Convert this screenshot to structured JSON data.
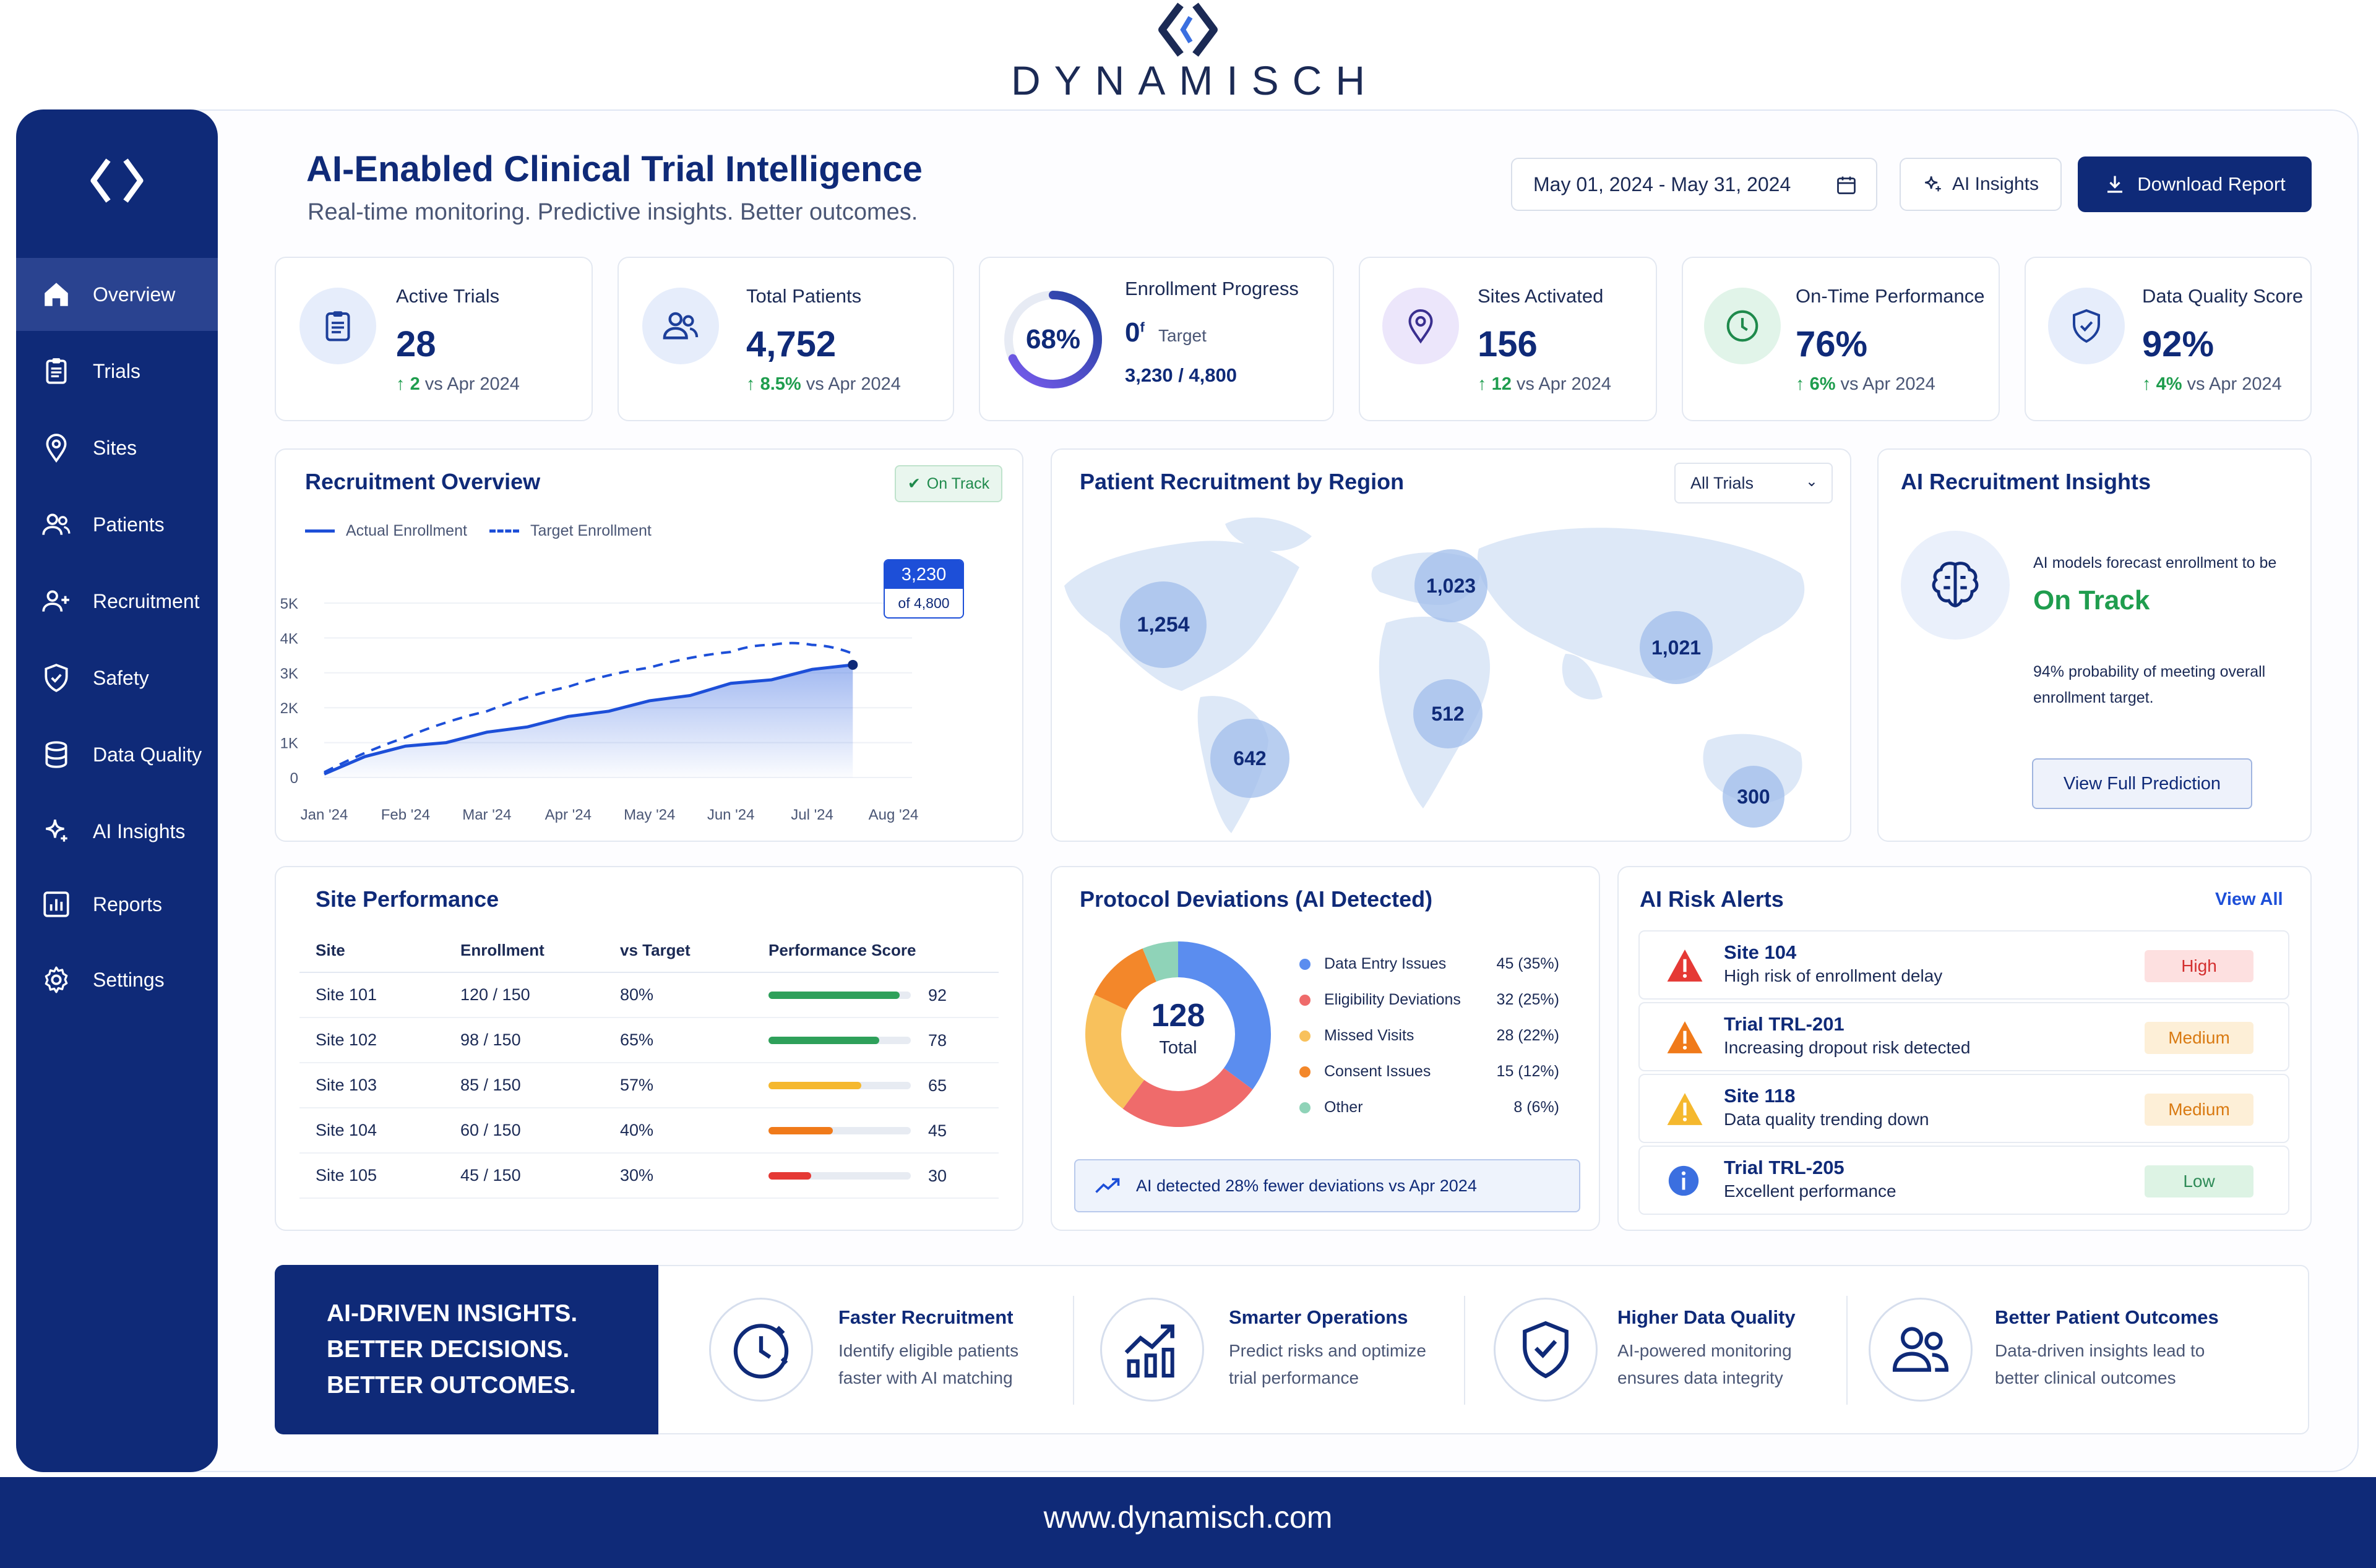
{
  "brand": {
    "name": "DYNAMISCH",
    "footer_url": "www.dynamisch.com"
  },
  "sidebar": {
    "items": [
      {
        "label": "Overview",
        "icon": "home-icon",
        "active": true
      },
      {
        "label": "Trials",
        "icon": "clipboard-icon"
      },
      {
        "label": "Sites",
        "icon": "map-pin-icon"
      },
      {
        "label": "Patients",
        "icon": "users-icon"
      },
      {
        "label": "Recruitment",
        "icon": "user-plus-icon"
      },
      {
        "label": "Safety",
        "icon": "shield-icon"
      },
      {
        "label": "Data Quality",
        "icon": "database-icon"
      },
      {
        "label": "AI Insights",
        "icon": "sparkle-icon"
      },
      {
        "label": "Reports",
        "icon": "bar-chart-icon"
      },
      {
        "label": "Settings",
        "icon": "gear-icon"
      }
    ]
  },
  "header": {
    "title": "AI-Enabled Clinical Trial Intelligence",
    "subtitle": "Real-time monitoring. Predictive insights. Better outcomes.",
    "date_range": "May 01, 2024 - May 31, 2024",
    "ai_insights_label": "AI Insights",
    "download_label": "Download Report"
  },
  "kpis": {
    "active_trials": {
      "label": "Active Trials",
      "value": "28",
      "delta": "2",
      "delta_suffix": "vs Apr 2024"
    },
    "total_patients": {
      "label": "Total Patients",
      "value": "4,752",
      "delta": "8.5%",
      "delta_suffix": "vs Apr 2024"
    },
    "enrollment": {
      "label": "Enrollment Progress",
      "percent": "68%",
      "percent_value": 68,
      "target_prefix": "0",
      "target_sup": "f",
      "target_word": "Target",
      "counts": "3,230 / 4,800"
    },
    "sites_activated": {
      "label": "Sites Activated",
      "value": "156",
      "delta": "12",
      "delta_suffix": "vs Apr 2024"
    },
    "on_time": {
      "label": "On-Time Performance",
      "value": "76%",
      "delta": "6%",
      "delta_suffix": "vs Apr 2024"
    },
    "data_quality": {
      "label": "Data Quality Score",
      "value": "92%",
      "delta": "4%",
      "delta_suffix": "vs Apr 2024"
    }
  },
  "recruitment": {
    "title": "Recruitment Overview",
    "status_badge": "On Track",
    "legend_actual": "Actual Enrollment",
    "legend_target": "Target Enrollment",
    "callout_value": "3,230",
    "callout_sub": "of 4,800"
  },
  "chart_data": {
    "type": "line",
    "title": "Recruitment Overview",
    "categories": [
      "Jan '24",
      "Feb '24",
      "Mar '24",
      "Apr '24",
      "May '24",
      "Jun '24",
      "Jul '24",
      "Aug '24"
    ],
    "y_ticks": [
      "0",
      "1K",
      "2K",
      "3K",
      "4K",
      "5K"
    ],
    "ylim": [
      0,
      5000
    ],
    "xlim": [
      0,
      7
    ],
    "series": [
      {
        "name": "Actual Enrollment",
        "style": "solid-area",
        "color": "#1d4fd8",
        "x": [
          0,
          0.5,
          1,
          1.5,
          2,
          2.5,
          3,
          3.5,
          4,
          4.5,
          5,
          5.5,
          6,
          6.5
        ],
        "y": [
          100,
          600,
          900,
          1000,
          1300,
          1450,
          1750,
          1900,
          2200,
          2350,
          2700,
          2800,
          3100,
          3230
        ]
      },
      {
        "name": "Target Enrollment",
        "style": "dashed",
        "color": "#1d4fd8",
        "x": [
          0,
          1,
          2,
          3,
          4,
          5,
          5.5,
          6,
          6.5
        ],
        "y": [
          150,
          1150,
          1900,
          2600,
          3150,
          3600,
          3800,
          3800,
          3550
        ]
      }
    ]
  },
  "region": {
    "title": "Patient Recruitment by Region",
    "filter": "All Trials",
    "bubbles": [
      {
        "value": "1,254"
      },
      {
        "value": "642"
      },
      {
        "value": "1,023"
      },
      {
        "value": "512"
      },
      {
        "value": "1,021"
      },
      {
        "value": "300"
      }
    ]
  },
  "ai_recruitment": {
    "title": "AI Recruitment Insights",
    "forecast_text": "AI models forecast enrollment to be",
    "status": "On Track",
    "probability_line1": "94% probability of meeting overall",
    "probability_line2": "enrollment target.",
    "button": "View Full Prediction"
  },
  "site_performance": {
    "title": "Site Performance",
    "columns": [
      "Site",
      "Enrollment",
      "vs Target",
      "Performance Score"
    ],
    "rows": [
      {
        "site": "Site 101",
        "enrollment": "120 / 150",
        "vs_target": "80%",
        "score": 92,
        "score_label": "92",
        "color": "#2ea05a"
      },
      {
        "site": "Site 102",
        "enrollment": "98 / 150",
        "vs_target": "65%",
        "score": 78,
        "score_label": "78",
        "color": "#2ea05a"
      },
      {
        "site": "Site 103",
        "enrollment": "85 / 150",
        "vs_target": "57%",
        "score": 65,
        "score_label": "65",
        "color": "#f5b82e"
      },
      {
        "site": "Site 104",
        "enrollment": "60 / 150",
        "vs_target": "40%",
        "score": 45,
        "score_label": "45",
        "color": "#f07a1a"
      },
      {
        "site": "Site 105",
        "enrollment": "45 / 150",
        "vs_target": "30%",
        "score": 30,
        "score_label": "30",
        "color": "#e53935"
      }
    ]
  },
  "deviations": {
    "title": "Protocol Deviations (AI Detected)",
    "total": "128",
    "total_label": "Total",
    "items": [
      {
        "label": "Data Entry Issues",
        "value": "45 (35%)",
        "count": 45,
        "color": "#5b8def"
      },
      {
        "label": "Eligibility Deviations",
        "value": "32 (25%)",
        "count": 32,
        "color": "#ef6b6b"
      },
      {
        "label": "Missed Visits",
        "value": "28 (22%)",
        "count": 28,
        "color": "#f8c15c"
      },
      {
        "label": "Consent Issues",
        "value": "15 (12%)",
        "count": 15,
        "color": "#f3872a"
      },
      {
        "label": "Other",
        "value": "8 (6%)",
        "count": 8,
        "color": "#8fd3b8"
      }
    ],
    "footer_note": "AI detected 28% fewer deviations vs Apr 2024"
  },
  "risk_alerts": {
    "title": "AI Risk Alerts",
    "view_all": "View All",
    "items": [
      {
        "title": "Site 104",
        "desc": "High risk of enrollment delay",
        "level": "High",
        "icon": "warning-red-icon",
        "badge_bg": "#fde0e0",
        "badge_fg": "#d32f2f"
      },
      {
        "title": "Trial TRL-201",
        "desc": "Increasing dropout risk detected",
        "level": "Medium",
        "icon": "warning-orange-icon",
        "badge_bg": "#fdefd7",
        "badge_fg": "#d97a12"
      },
      {
        "title": "Site 118",
        "desc": "Data quality trending down",
        "level": "Medium",
        "icon": "warning-yellow-icon",
        "badge_bg": "#fdefd7",
        "badge_fg": "#d97a12"
      },
      {
        "title": "Trial TRL-205",
        "desc": "Excellent performance",
        "level": "Low",
        "icon": "info-icon",
        "badge_bg": "#ddf3e4",
        "badge_fg": "#2e8b57"
      }
    ]
  },
  "banner": {
    "headline_1": "AI-DRIVEN INSIGHTS.",
    "headline_2": "BETTER DECISIONS.",
    "headline_3": "BETTER OUTCOMES.",
    "benefits": [
      {
        "title": "Faster Recruitment",
        "line1": "Identify eligible patients",
        "line2": "faster with AI matching",
        "icon": "clock-icon"
      },
      {
        "title": "Smarter Operations",
        "line1": "Predict risks and optimize",
        "line2": "trial performance",
        "icon": "trend-chart-icon"
      },
      {
        "title": "Higher Data Quality",
        "line1": "AI-powered monitoring",
        "line2": "ensures data integrity",
        "icon": "shield-check-icon"
      },
      {
        "title": "Better Patient Outcomes",
        "line1": "Data-driven insights lead to",
        "line2": "better clinical outcomes",
        "icon": "patients-icon"
      }
    ]
  },
  "colors": {
    "primary": "#0f2a78",
    "accent": "#1d4fd8",
    "positive": "#1f9d4e"
  }
}
